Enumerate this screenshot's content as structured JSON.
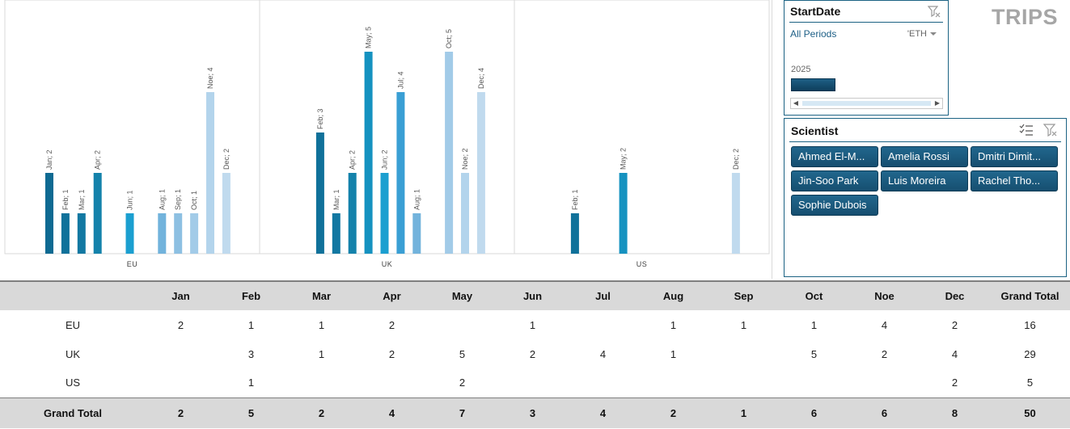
{
  "title": "TRIPS",
  "chart_data": {
    "type": "bar",
    "groups": [
      "EU",
      "UK",
      "US"
    ],
    "categories": [
      "Jan",
      "Feb",
      "Mar",
      "Apr",
      "May",
      "Jun",
      "Jul",
      "Aug",
      "Sep",
      "Oct",
      "Noe",
      "Dec"
    ],
    "series": [
      {
        "group": "EU",
        "values": [
          2,
          1,
          1,
          2,
          null,
          1,
          null,
          1,
          1,
          1,
          4,
          2
        ]
      },
      {
        "group": "UK",
        "values": [
          null,
          3,
          1,
          2,
          5,
          2,
          4,
          1,
          null,
          5,
          2,
          4
        ]
      },
      {
        "group": "US",
        "values": [
          null,
          1,
          null,
          null,
          2,
          null,
          null,
          null,
          null,
          null,
          null,
          2
        ]
      }
    ],
    "data_label_format": "{category}; {value}",
    "ylim": [
      0,
      5
    ],
    "grid": false,
    "month_colors": [
      "#0e6a92",
      "#10719a",
      "#1278a2",
      "#1482ab",
      "#1592c0",
      "#1b9fd0",
      "#3a9fd4",
      "#72b3dc",
      "#8dc0e2",
      "#a2cbe8",
      "#b3d4ec",
      "#c0daee"
    ]
  },
  "date_slicer": {
    "header": "StartDate",
    "all_periods": "All Periods",
    "level": "'ETH",
    "year": "2025"
  },
  "scientist_slicer": {
    "header": "Scientist",
    "items": [
      "Ahmed El-M...",
      "Amelia Rossi",
      "Dmitri Dimit...",
      "Jin-Soo Park",
      "Luis Moreira",
      "Rachel Tho...",
      "Sophie Dubois"
    ]
  },
  "pivot": {
    "columns": [
      "",
      "Jan",
      "Feb",
      "Mar",
      "Apr",
      "May",
      "Jun",
      "Jul",
      "Aug",
      "Sep",
      "Oct",
      "Noe",
      "Dec",
      "Grand Total"
    ],
    "rows": [
      {
        "label": "EU",
        "values": [
          "2",
          "1",
          "1",
          "2",
          "",
          "1",
          "",
          "1",
          "1",
          "1",
          "4",
          "2",
          "16"
        ]
      },
      {
        "label": "UK",
        "values": [
          "",
          "3",
          "1",
          "2",
          "5",
          "2",
          "4",
          "1",
          "",
          "5",
          "2",
          "4",
          "29"
        ]
      },
      {
        "label": "US",
        "values": [
          "",
          "1",
          "",
          "",
          "2",
          "",
          "",
          "",
          "",
          "",
          "",
          "2",
          "5"
        ]
      }
    ],
    "total": {
      "label": "Grand Total",
      "values": [
        "2",
        "5",
        "2",
        "4",
        "7",
        "3",
        "4",
        "2",
        "1",
        "6",
        "6",
        "8",
        "50"
      ]
    }
  }
}
